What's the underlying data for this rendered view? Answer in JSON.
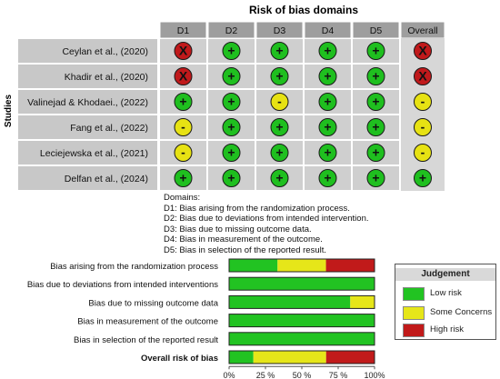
{
  "chart_data": [
    {
      "type": "table",
      "title": "Risk of bias domains",
      "ylabel": "Studies",
      "columns": [
        "D1",
        "D2",
        "D3",
        "D4",
        "D5",
        "Overall"
      ],
      "rows": [
        {
          "study": "Ceylan et al., (2020)",
          "judgements": [
            "high",
            "low",
            "low",
            "low",
            "low",
            "high"
          ]
        },
        {
          "study": "Khadir et al., (2020)",
          "judgements": [
            "high",
            "low",
            "low",
            "low",
            "low",
            "high"
          ]
        },
        {
          "study": "Valinejad & Khodaei., (2022)",
          "judgements": [
            "low",
            "low",
            "some",
            "low",
            "low",
            "some"
          ]
        },
        {
          "study": "Fang et al., (2022)",
          "judgements": [
            "some",
            "low",
            "low",
            "low",
            "low",
            "some"
          ]
        },
        {
          "study": "Leciejewska et al., (2021)",
          "judgements": [
            "some",
            "low",
            "low",
            "low",
            "low",
            "some"
          ]
        },
        {
          "study": "Delfan et al., (2024)",
          "judgements": [
            "low",
            "low",
            "low",
            "low",
            "low",
            "low"
          ]
        }
      ],
      "symbols": {
        "high": "X",
        "low": "+",
        "some": "-"
      }
    },
    {
      "type": "bar",
      "stacked": true,
      "orientation": "horizontal",
      "categories": [
        "Bias arising from the randomization process",
        "Bias due to deviations from intended interventions",
        "Bias due to missing outcome data",
        "Bias in measurement of the outcome",
        "Bias in selection of the reported result",
        "Overall risk of bias"
      ],
      "series": [
        {
          "name": "Low risk",
          "color": "#22c322",
          "values": [
            33.3,
            100,
            83.3,
            100,
            100,
            16.7
          ]
        },
        {
          "name": "Some Concerns",
          "color": "#e6e619",
          "values": [
            33.3,
            0,
            16.7,
            0,
            0,
            50
          ]
        },
        {
          "name": "High risk",
          "color": "#c11a1a",
          "values": [
            33.3,
            0,
            0,
            0,
            0,
            33.3
          ]
        }
      ],
      "xticks": [
        "0%",
        "25 %",
        "50 %",
        "75 %",
        "100%"
      ],
      "xlim": [
        0,
        100
      ],
      "legend_title": "Judgement",
      "legend_position": "right"
    }
  ],
  "domains_text": {
    "heading": "Domains:",
    "items": [
      "D1: Bias arising from the randomization process.",
      "D2: Bias due to deviations from intended intervention.",
      "D3: Bias due to missing outcome data.",
      "D4: Bias in measurement of the outcome.",
      "D5: Bias in selection of the reported result."
    ]
  },
  "colors": {
    "high": "#c0191b",
    "low": "#1fbf1f",
    "some": "#e7e213",
    "cell": "#cfcfcf",
    "header": "#9e9e9e",
    "overall_col": "#d7d7d7"
  }
}
